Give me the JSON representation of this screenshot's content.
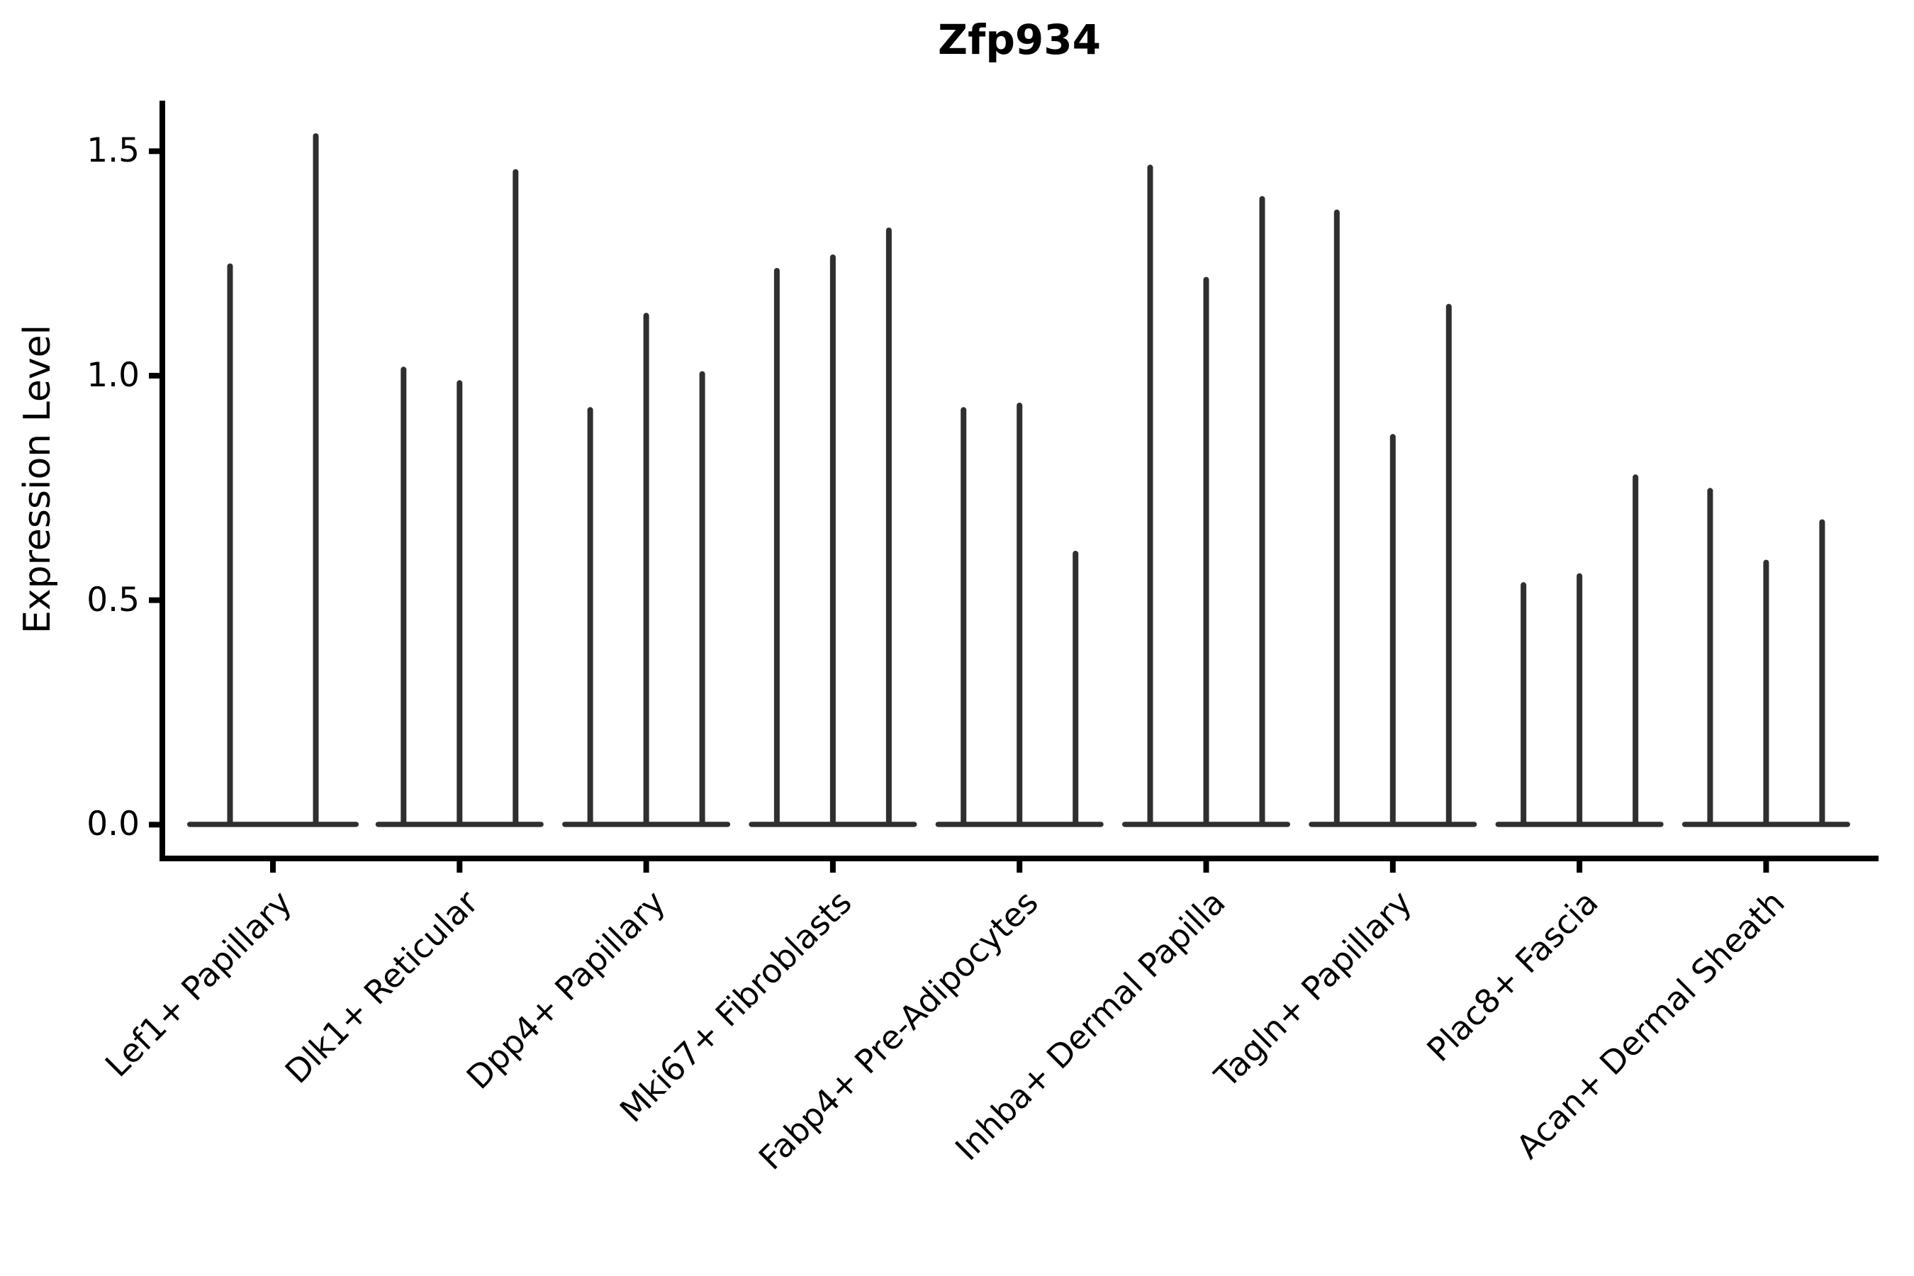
{
  "chart_data": {
    "type": "violin",
    "title": "Zfp934",
    "ylabel": "Expression Level",
    "xlabel": "",
    "grid": false,
    "legend": null,
    "ylim": [
      -0.077,
      1.613
    ],
    "yticks": [
      0.0,
      0.5,
      1.0,
      1.5
    ],
    "ytick_labels": [
      "0.0",
      "0.5",
      "1.0",
      "1.5"
    ],
    "axis_color": "#000000",
    "violin_color": "#2f2f2f",
    "description": "Sparse single-cell expression violins: per cluster, 2-3 narrow spike violins rising from a flat dense mass at expression 0 up to each violin's maximum value.",
    "categories": [
      {
        "label": "Lef1+ Papillary",
        "violin_maxima": [
          1.25,
          1.54
        ]
      },
      {
        "label": "Dlk1+ Reticular",
        "violin_maxima": [
          1.02,
          0.99,
          1.46
        ]
      },
      {
        "label": "Dpp4+ Papillary",
        "violin_maxima": [
          0.93,
          1.14,
          1.01
        ]
      },
      {
        "label": "Mki67+ Fibroblasts",
        "violin_maxima": [
          1.24,
          1.27,
          1.33
        ]
      },
      {
        "label": "Fabp4+ Pre-Adipocytes",
        "violin_maxima": [
          0.93,
          0.94,
          0.61
        ]
      },
      {
        "label": "Inhba+ Dermal Papilla",
        "violin_maxima": [
          1.47,
          1.22,
          1.4
        ]
      },
      {
        "label": "Tagln+ Papillary",
        "violin_maxima": [
          1.37,
          0.87,
          1.16
        ]
      },
      {
        "label": "Plac8+ Fascia",
        "violin_maxima": [
          0.54,
          0.56,
          0.78
        ]
      },
      {
        "label": "Acan+ Dermal Sheath",
        "violin_maxima": [
          0.75,
          0.59,
          0.68
        ]
      }
    ]
  }
}
